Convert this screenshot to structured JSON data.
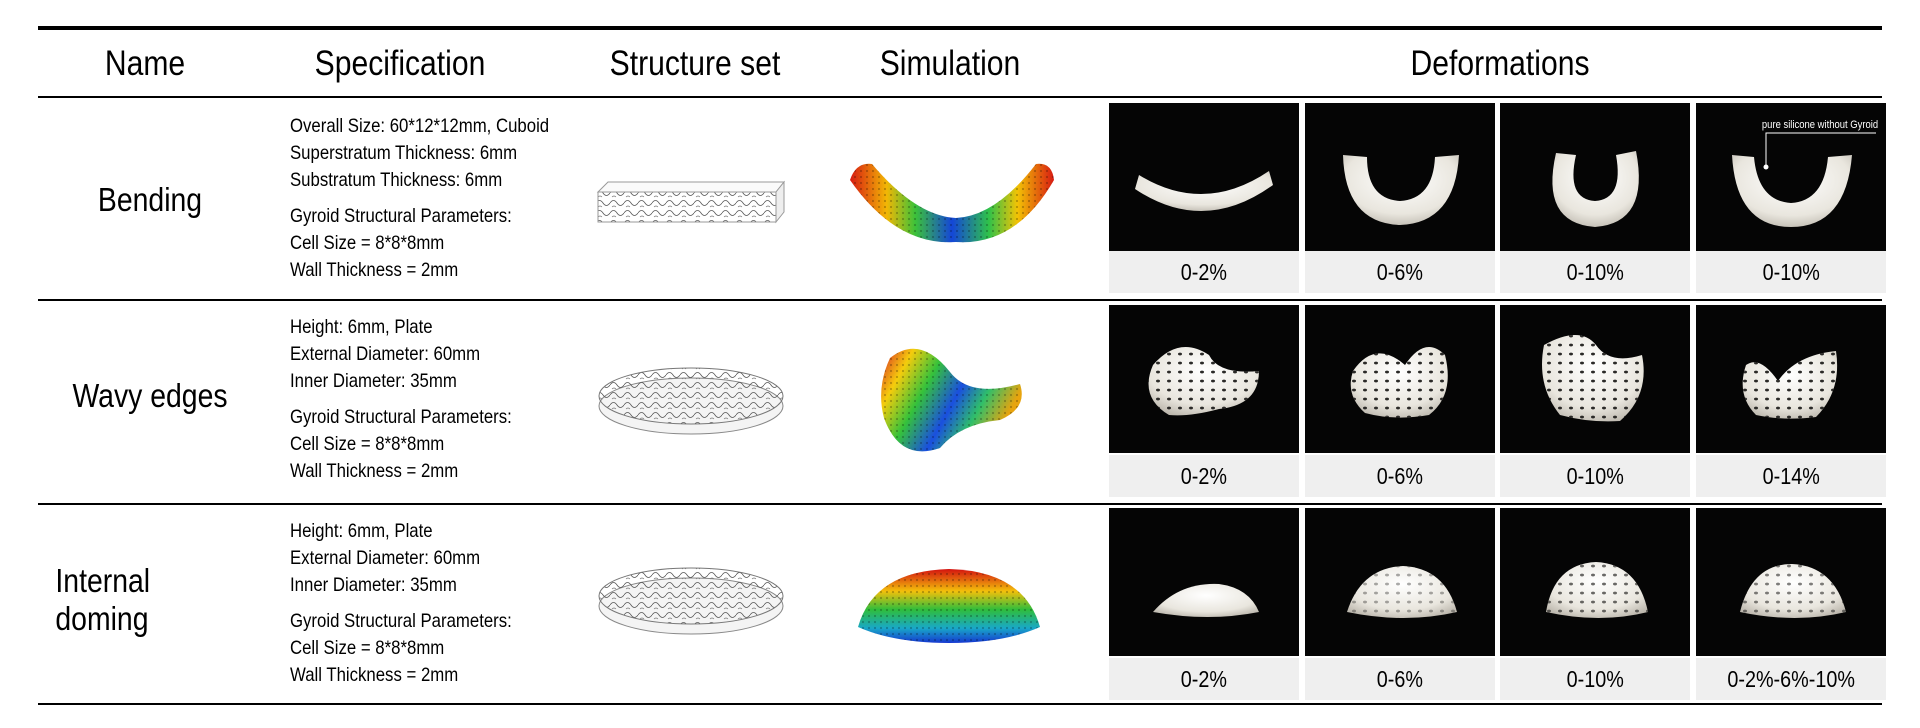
{
  "headers": [
    "Name",
    "Specification",
    "Structure set",
    "Simulation",
    "Deformations"
  ],
  "rows": [
    {
      "name": "Bending",
      "spec_lines_a": [
        "Overall Size: 60*12*12mm, Cuboid",
        "Superstratum Thickness: 6mm",
        "Substratum Thickness: 6mm"
      ],
      "spec_lines_b": [
        "Gyroid Structural Parameters:",
        "Cell Size = 8*8*8mm",
        "Wall Thickness = 2mm"
      ],
      "deformations": [
        "0-2%",
        "0-6%",
        "0-10%",
        "0-10%"
      ],
      "annotation": "pure silicone without Gyroid"
    },
    {
      "name": "Wavy edges",
      "spec_lines_a": [
        "Height: 6mm, Plate",
        "External Diameter: 60mm",
        "Inner Diameter: 35mm"
      ],
      "spec_lines_b": [
        "Gyroid Structural Parameters:",
        "Cell Size = 8*8*8mm",
        "Wall Thickness = 2mm"
      ],
      "deformations": [
        "0-2%",
        "0-6%",
        "0-10%",
        "0-14%"
      ]
    },
    {
      "name": "Internal doming",
      "spec_lines_a": [
        "Height: 6mm, Plate",
        "External Diameter: 60mm",
        "Inner Diameter: 35mm"
      ],
      "spec_lines_b": [
        "Gyroid Structural Parameters:",
        "Cell Size = 8*8*8mm",
        "Wall Thickness = 2mm"
      ],
      "deformations": [
        "0-2%",
        "0-6%",
        "0-10%",
        "0-2%-6%-10%"
      ]
    }
  ],
  "colors": {
    "rule": "#000000",
    "label_bg": "#efefef",
    "photo_bg": "#050505",
    "sample": "#f2f0ea"
  }
}
